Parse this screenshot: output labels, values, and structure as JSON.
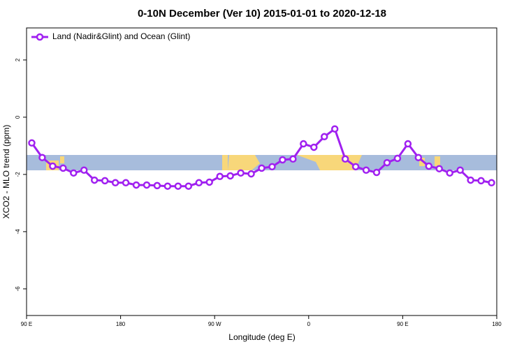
{
  "chart_data": {
    "type": "line",
    "title": "0-10N December (Ver 10)   2015-01-01 to 2020-12-18",
    "x_label": "Longitude (deg E)",
    "y_label": "XCO2 - MLO trend (ppm)",
    "x": [
      95,
      105,
      115,
      125,
      135,
      145,
      155,
      165,
      175,
      185,
      195,
      205,
      215,
      225,
      235,
      245,
      255,
      265,
      275,
      285,
      295,
      305,
      315,
      325,
      335,
      345,
      355,
      365,
      375,
      385,
      395,
      405,
      415,
      425,
      435,
      445,
      455,
      465,
      475,
      485,
      495,
      505,
      515,
      525,
      535
    ],
    "series": [
      {
        "name": "Land (Nadir&Glint) and Ocean (Glint)",
        "color": "#a020f0",
        "values": [
          -0.9,
          -1.41,
          -1.71,
          -1.78,
          -1.95,
          -1.85,
          -2.2,
          -2.22,
          -2.29,
          -2.29,
          -2.37,
          -2.37,
          -2.39,
          -2.41,
          -2.41,
          -2.41,
          -2.29,
          -2.27,
          -2.07,
          -2.05,
          -1.95,
          -1.98,
          -1.78,
          -1.73,
          -1.49,
          -1.46,
          -0.93,
          -1.05,
          -0.68,
          -0.41,
          -1.46,
          -1.73,
          -1.85,
          -1.93,
          -1.59,
          -1.44,
          -0.93,
          -1.41,
          -1.71,
          -1.8,
          -1.95,
          -1.85,
          -2.2,
          -2.22,
          -2.29
        ]
      }
    ],
    "xlim": [
      90,
      540
    ],
    "xticks": [
      {
        "value": 90,
        "label": "90 E"
      },
      180,
      {
        "value": 270,
        "label": "90 W"
      },
      {
        "value": 360,
        "label": "0"
      },
      {
        "value": 450,
        "label": "90 E"
      },
      {
        "value": 540,
        "label": "180"
      }
    ],
    "ylim": [
      -6.93,
      3.12
    ],
    "yticks": [
      -6,
      -4,
      -2,
      0,
      2
    ],
    "legend": "top-left"
  }
}
